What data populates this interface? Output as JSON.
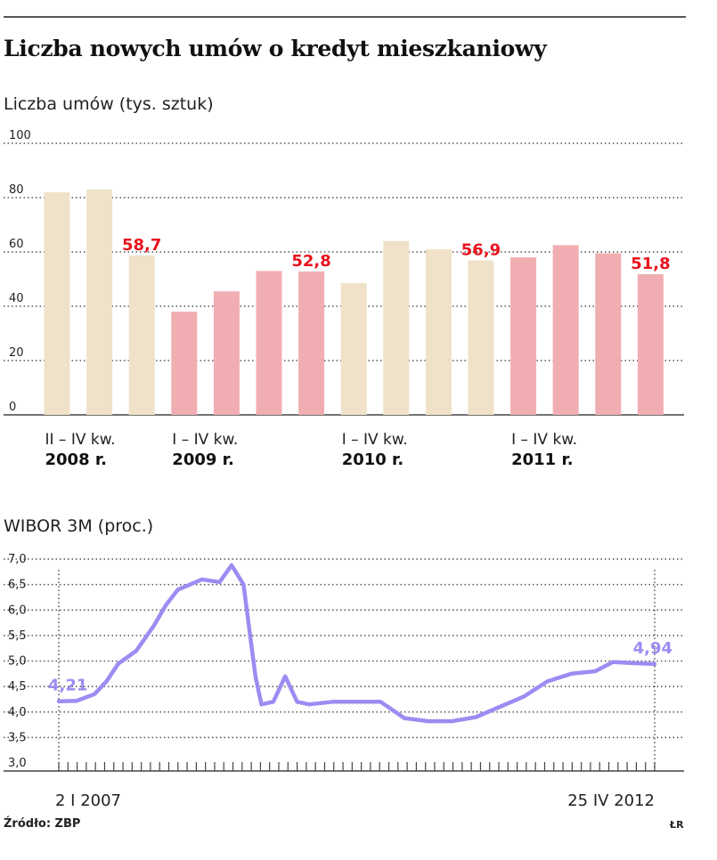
{
  "title": "Liczba nowych umów o kredyt mieszkaniowy",
  "source": "Źródło: ZBP",
  "credit": "ŁR",
  "colors": {
    "beige": "#efe2c8",
    "pink": "#f1aeb2",
    "label_red": "#e8141e",
    "line_purple": "#9c8cf2"
  },
  "chart_data": [
    {
      "type": "bar",
      "subtitle": "Liczba umów (tys. sztuk)",
      "ylim": [
        0,
        100
      ],
      "yticks": [
        0,
        20,
        40,
        60,
        80,
        100
      ],
      "grid": true,
      "categories": [
        "II kw. 2008",
        "III kw. 2008",
        "IV kw. 2008",
        "I kw. 2009",
        "II kw. 2009",
        "III kw. 2009",
        "IV kw. 2009",
        "I kw. 2010",
        "II kw. 2010",
        "III kw. 2010",
        "IV kw. 2010",
        "I kw. 2011",
        "II kw. 2011",
        "III kw. 2011",
        "IV kw. 2011"
      ],
      "values": [
        82,
        83,
        58.7,
        38,
        45.5,
        53,
        52.8,
        48.5,
        64,
        61,
        56.9,
        58,
        62.5,
        59.5,
        51.8
      ],
      "bar_colors": [
        "beige",
        "beige",
        "beige",
        "pink",
        "pink",
        "pink",
        "pink",
        "beige",
        "beige",
        "beige",
        "beige",
        "pink",
        "pink",
        "pink",
        "pink"
      ],
      "value_labels": [
        {
          "index": 2,
          "text": "58,7"
        },
        {
          "index": 6,
          "text": "52,8"
        },
        {
          "index": 10,
          "text": "56,9"
        },
        {
          "index": 14,
          "text": "51,8"
        }
      ],
      "groups": [
        {
          "range": "II – IV kw.",
          "year": "2008 r.",
          "first_index": 0
        },
        {
          "range": "I – IV kw.",
          "year": "2009 r.",
          "first_index": 3
        },
        {
          "range": "I – IV kw.",
          "year": "2010 r.",
          "first_index": 7
        },
        {
          "range": "I – IV kw.",
          "year": "2011 r.",
          "first_index": 11
        }
      ]
    },
    {
      "type": "line",
      "subtitle": "WIBOR 3M (proc.)",
      "ylim": [
        3.0,
        7.0
      ],
      "yticks": [
        "3,0",
        "3,5",
        "4,0",
        "4,5",
        "5,0",
        "5,5",
        "6,0",
        "6,5",
        "7,0"
      ],
      "grid": true,
      "x_start": "2 I 2007",
      "x_end": "25 IV 2012",
      "x_ticks_count": 66,
      "start_label": "4,21",
      "end_label": "4,94",
      "x": [
        0,
        0.03,
        0.06,
        0.08,
        0.1,
        0.13,
        0.16,
        0.18,
        0.2,
        0.24,
        0.27,
        0.29,
        0.31,
        0.32,
        0.33,
        0.34,
        0.36,
        0.38,
        0.4,
        0.42,
        0.46,
        0.5,
        0.54,
        0.58,
        0.62,
        0.66,
        0.7,
        0.74,
        0.78,
        0.82,
        0.86,
        0.9,
        0.93,
        0.96,
        1
      ],
      "y": [
        4.21,
        4.22,
        4.35,
        4.6,
        4.95,
        5.2,
        5.7,
        6.1,
        6.4,
        6.6,
        6.55,
        6.88,
        6.5,
        5.6,
        4.7,
        4.15,
        4.2,
        4.7,
        4.2,
        4.15,
        4.2,
        4.2,
        4.2,
        3.88,
        3.82,
        3.82,
        3.9,
        4.1,
        4.3,
        4.6,
        4.75,
        4.8,
        4.98,
        4.96,
        4.94
      ]
    }
  ]
}
